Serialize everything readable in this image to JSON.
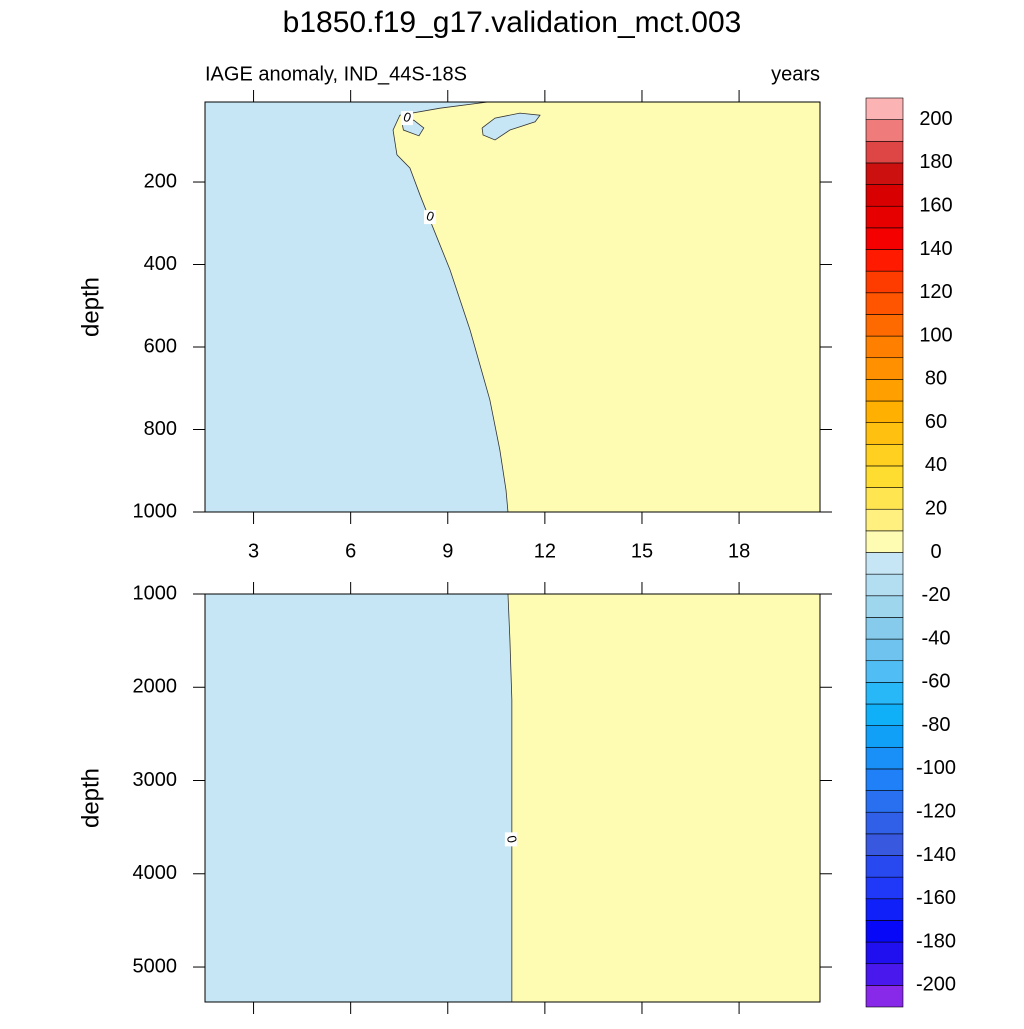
{
  "chart_data": {
    "type": "contour",
    "title": "b1850.f19_g17.validation_mct.003",
    "subtitle_left": "IAGE anomaly, IND_44S-18S",
    "subtitle_right": "years",
    "xlim": [
      1.5,
      20.5
    ],
    "xticks": [
      3,
      6,
      9,
      12,
      15,
      18
    ],
    "levels": [
      -200,
      -190,
      -180,
      -170,
      -160,
      -150,
      -140,
      -130,
      -120,
      -110,
      -100,
      -90,
      -80,
      -70,
      -60,
      -50,
      -40,
      -30,
      -20,
      -10,
      0,
      10,
      20,
      30,
      40,
      50,
      60,
      70,
      80,
      90,
      100,
      110,
      120,
      130,
      140,
      150,
      160,
      170,
      180,
      190,
      200
    ],
    "colors": [
      "#8828e8",
      "#4818ec",
      "#2010f0",
      "#0808f8",
      "#1020f8",
      "#2038f8",
      "#2848f0",
      "#3858e0",
      "#3060e8",
      "#2870f0",
      "#2080f8",
      "#1890f8",
      "#10a0f8",
      "#10b0f8",
      "#28b8f8",
      "#50bef5",
      "#6ec4ef",
      "#86cbeb",
      "#9ed6ee",
      "#b3def2",
      "#c6e6f5",
      "#fefbb3",
      "#fff080",
      "#ffe650",
      "#ffdc30",
      "#ffd020",
      "#ffc010",
      "#ffb000",
      "#ffa000",
      "#ff9000",
      "#ff7f00",
      "#ff6a00",
      "#ff5500",
      "#ff3c00",
      "#ff1a00",
      "#f50000",
      "#e60000",
      "#d80000",
      "#cc1010",
      "#de4646",
      "#f07b7b",
      "#fbb3b3"
    ],
    "colorbar_ticks": [
      200,
      180,
      160,
      140,
      120,
      100,
      80,
      60,
      40,
      20,
      0,
      -20,
      -40,
      -60,
      -80,
      -100,
      -120,
      -140,
      -160,
      -180,
      -200
    ],
    "panels": [
      {
        "ylabel": "depth",
        "ylim": [
          6,
          1000
        ],
        "yticks": [
          200,
          400,
          600,
          800,
          1000
        ],
        "x_tick_labels": true,
        "contours": [
          {
            "x": [
              10.24,
              8.76,
              7.52,
              7.31,
              7.43,
              7.83,
              8.14,
              8.51,
              9.07,
              9.69,
              10.3,
              10.61,
              10.8,
              10.86
            ],
            "y": [
              6,
              21,
              38,
              74,
              134,
              166,
              231,
              304,
              413,
              559,
              728,
              850,
              947,
              1000
            ]
          },
          {
            "x": [
              7.58,
              7.95,
              8.26,
              8.11,
              7.63,
              7.58
            ],
            "y": [
              54,
              50,
              69,
              88,
              74,
              54
            ]
          },
          {
            "x": [
              10.06,
              10.46,
              11.23,
              11.85,
              11.7,
              10.92,
              10.46,
              10.09,
              10.06
            ],
            "y": [
              69,
              45,
              33,
              38,
              54,
              74,
              98,
              86,
              69
            ]
          }
        ],
        "contour_labels": [
          {
            "value": 0,
            "x": 7.74,
            "y": 45
          },
          {
            "value": 0,
            "x": 8.45,
            "y": 285
          }
        ]
      },
      {
        "ylabel": "depth",
        "ylim": [
          1000,
          5375
        ],
        "yticks": [
          1000,
          2000,
          3000,
          4000,
          5000
        ],
        "x_tick_labels": false,
        "contours": [
          {
            "x": [
              10.86,
              10.92,
              10.98,
              10.98
            ],
            "y": [
              1000,
              1492,
              2134,
              5375
            ]
          }
        ],
        "contour_labels": [
          {
            "value": 0,
            "x": 10.95,
            "y": 3631
          }
        ]
      }
    ]
  }
}
